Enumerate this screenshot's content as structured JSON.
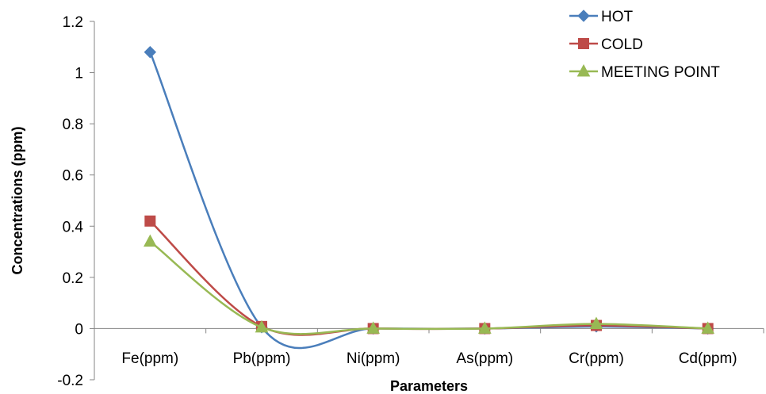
{
  "chart_data": {
    "type": "line",
    "title": "",
    "xlabel": "Parameters",
    "ylabel": "Concentrations (ppm)",
    "categories": [
      "Fe(ppm)",
      "Pb(ppm)",
      "Ni(ppm)",
      "As(ppm)",
      "Cr(ppm)",
      "Cd(ppm)"
    ],
    "ylim": [
      -0.2,
      1.2
    ],
    "yticks": [
      "-0.2",
      "0",
      "0.2",
      "0.4",
      "0.6",
      "0.8",
      "1",
      "1.2"
    ],
    "smooth": true,
    "grid": false,
    "legend_position": "top-right",
    "series": [
      {
        "name": "HOT",
        "values": [
          1.08,
          0.005,
          0.0,
          0.0,
          0.008,
          0.0
        ],
        "color": "#4a7ebb",
        "marker": "diamond"
      },
      {
        "name": "COLD",
        "values": [
          0.42,
          0.008,
          0.0,
          0.0,
          0.012,
          0.0
        ],
        "color": "#be4b48",
        "marker": "square"
      },
      {
        "name": "MEETING POINT",
        "values": [
          0.34,
          0.005,
          0.0,
          0.0,
          0.018,
          0.0
        ],
        "color": "#98b954",
        "marker": "triangle"
      }
    ]
  }
}
